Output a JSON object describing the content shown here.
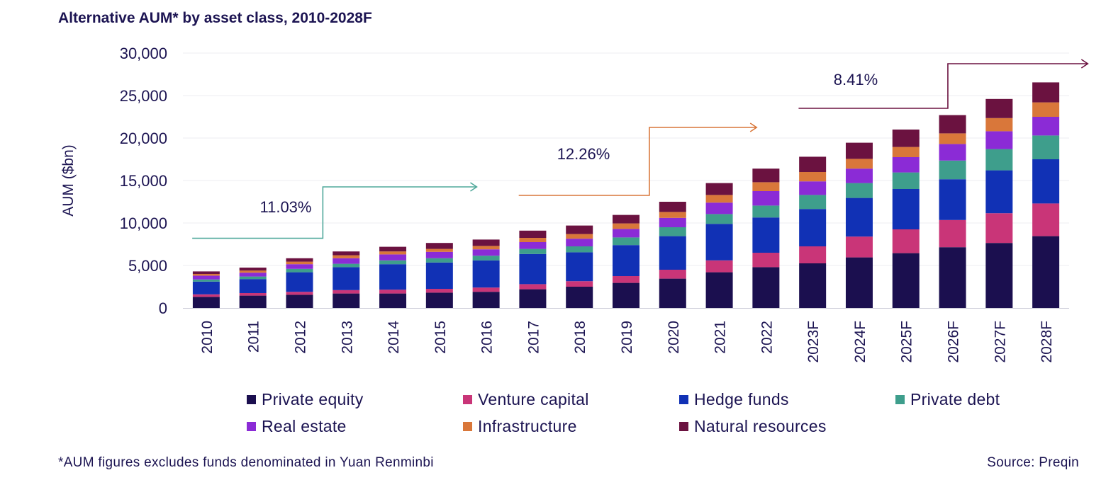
{
  "title": "Alternative AUM* by asset class, 2010-2028F",
  "footnote": "*AUM figures excludes funds denominated in Yuan Renminbi",
  "source": "Source: Preqin",
  "chart_data": {
    "type": "bar",
    "stacked": true,
    "ylabel": "AUM ($bn)",
    "ylim": [
      0,
      30000
    ],
    "yticks": [
      0,
      5000,
      10000,
      15000,
      20000,
      25000,
      30000
    ],
    "ytick_labels": [
      "0",
      "5,000",
      "10,000",
      "15,000",
      "20,000",
      "25,000",
      "30,000"
    ],
    "grid": true,
    "legend_position": "bottom",
    "categories": [
      "2010",
      "2011",
      "2012",
      "2013",
      "2014",
      "2015",
      "2016",
      "2017",
      "2018",
      "2019",
      "2020",
      "2021",
      "2022",
      "2023F",
      "2024F",
      "2025F",
      "2026F",
      "2027F",
      "2028F"
    ],
    "series": [
      {
        "name": "Private equity",
        "color": "#1b0f4f",
        "values": [
          1300,
          1450,
          1550,
          1700,
          1700,
          1800,
          1900,
          2200,
          2500,
          2950,
          3450,
          4200,
          4800,
          5250,
          5950,
          6450,
          7150,
          7650,
          8450
        ]
      },
      {
        "name": "Venture capital",
        "color": "#c93578",
        "values": [
          300,
          300,
          350,
          400,
          450,
          450,
          500,
          600,
          650,
          800,
          1050,
          1400,
          1700,
          2000,
          2450,
          2800,
          3200,
          3500,
          3850
        ]
      },
      {
        "name": "Hedge funds",
        "color": "#1131b5",
        "values": [
          1500,
          1650,
          2300,
          2700,
          3000,
          3100,
          3200,
          3550,
          3400,
          3650,
          3950,
          4300,
          4150,
          4400,
          4550,
          4750,
          4800,
          5050,
          5200
        ]
      },
      {
        "name": "Private debt",
        "color": "#3e9e8c",
        "values": [
          250,
          300,
          400,
          400,
          450,
          500,
          550,
          600,
          700,
          900,
          1050,
          1150,
          1400,
          1650,
          1750,
          1950,
          2200,
          2500,
          2800
        ]
      },
      {
        "name": "Real estate",
        "color": "#8b2bd6",
        "values": [
          450,
          450,
          550,
          650,
          700,
          750,
          750,
          800,
          900,
          1000,
          1100,
          1350,
          1700,
          1600,
          1700,
          1800,
          1950,
          2100,
          2200
        ]
      },
      {
        "name": "Infrastructure",
        "color": "#d9773a",
        "values": [
          200,
          250,
          300,
          350,
          350,
          350,
          400,
          500,
          550,
          650,
          700,
          900,
          1050,
          1100,
          1150,
          1200,
          1250,
          1550,
          1700
        ]
      },
      {
        "name": "Natural resources",
        "color": "#6b1240",
        "values": [
          300,
          350,
          400,
          450,
          550,
          700,
          750,
          850,
          1000,
          1000,
          1200,
          1400,
          1600,
          1800,
          1900,
          2050,
          2150,
          2250,
          2350
        ]
      }
    ],
    "annotations": [
      {
        "text": "11.03%",
        "color": "#4fa89a"
      },
      {
        "text": "12.26%",
        "color": "#d9773a"
      },
      {
        "text": "8.41%",
        "color": "#6b1240"
      }
    ]
  }
}
